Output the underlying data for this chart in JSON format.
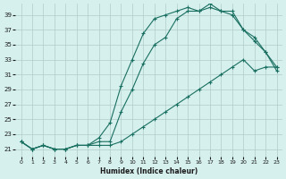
{
  "xlabel": "Humidex (Indice chaleur)",
  "bg_color": "#d6f0ee",
  "line_color": "#1a7060",
  "grid_color": "#b0ccc8",
  "xlim": [
    -0.5,
    23.5
  ],
  "ylim": [
    20,
    40.5
  ],
  "yticks": [
    21,
    23,
    25,
    27,
    29,
    31,
    33,
    35,
    37,
    39
  ],
  "xticks": [
    0,
    1,
    2,
    3,
    4,
    5,
    6,
    7,
    8,
    9,
    10,
    11,
    12,
    13,
    14,
    15,
    16,
    17,
    18,
    19,
    20,
    21,
    22,
    23
  ],
  "series1_x": [
    0,
    1,
    2,
    3,
    4,
    5,
    6,
    7,
    8,
    9,
    10,
    11,
    12,
    13,
    14,
    15,
    16,
    17,
    18,
    19,
    20,
    21,
    22,
    23
  ],
  "series1_y": [
    22,
    21,
    21.5,
    21,
    21,
    21.5,
    21.5,
    22,
    22,
    26,
    29,
    32.5,
    35,
    36,
    38.5,
    39.5,
    39.5,
    40,
    39.5,
    39,
    37,
    35.5,
    34,
    31.5
  ],
  "series2_x": [
    0,
    1,
    2,
    3,
    4,
    5,
    6,
    7,
    8,
    9,
    10,
    11,
    12,
    13,
    14,
    15,
    16,
    17,
    18,
    19,
    20,
    21,
    22,
    23
  ],
  "series2_y": [
    22,
    21,
    21.5,
    21,
    21,
    21.5,
    21.5,
    22.5,
    24.5,
    29.5,
    33,
    36.5,
    38.5,
    39,
    39.5,
    40,
    39.5,
    40.5,
    39.5,
    39.5,
    37,
    36,
    34,
    32
  ],
  "series3_x": [
    0,
    1,
    2,
    3,
    4,
    5,
    6,
    7,
    8,
    9,
    10,
    11,
    12,
    13,
    14,
    15,
    16,
    17,
    18,
    19,
    20,
    21,
    22,
    23
  ],
  "series3_y": [
    22,
    21,
    21.5,
    21,
    21,
    21.5,
    21.5,
    21.5,
    21.5,
    22,
    23,
    24,
    25,
    26,
    27,
    28,
    29,
    30,
    31,
    32,
    33,
    31.5,
    32,
    32
  ]
}
